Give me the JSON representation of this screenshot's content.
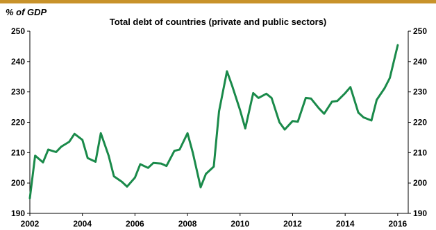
{
  "chart_data": {
    "type": "line",
    "title": "Total debt of countries (private and public sectors)",
    "unit_label": "% of GDP",
    "xlabel": "",
    "ylabel": "% of GDP",
    "xlim": [
      2002,
      2016.4
    ],
    "ylim": [
      190,
      250
    ],
    "x_ticks": [
      2002,
      2004,
      2006,
      2008,
      2010,
      2012,
      2014,
      2016
    ],
    "y_ticks": [
      190,
      200,
      210,
      220,
      230,
      240,
      250
    ],
    "grid": false,
    "legend": "none",
    "line_color": "#1a8a4a",
    "series": [
      {
        "x": [
          2002.0,
          2002.2,
          2002.5,
          2002.7,
          2003.0,
          2003.2,
          2003.5,
          2003.7,
          2004.0,
          2004.2,
          2004.5,
          2004.7,
          2005.0,
          2005.2,
          2005.5,
          2005.7,
          2006.0,
          2006.2,
          2006.5,
          2006.7,
          2007.0,
          2007.2,
          2007.5,
          2007.7,
          2008.0,
          2008.2,
          2008.5,
          2008.7,
          2009.0,
          2009.2,
          2009.5,
          2009.7,
          2010.0,
          2010.2,
          2010.5,
          2010.7,
          2011.0,
          2011.2,
          2011.5,
          2011.7,
          2012.0,
          2012.2,
          2012.5,
          2012.7,
          2013.0,
          2013.2,
          2013.5,
          2013.7,
          2014.0,
          2014.2,
          2014.5,
          2014.7,
          2015.0,
          2015.2,
          2015.5,
          2015.7,
          2016.0
        ],
        "values": [
          195.0,
          209.0,
          206.8,
          211.0,
          210.2,
          212.0,
          213.6,
          216.2,
          214.2,
          208.2,
          207.0,
          216.4,
          209.0,
          202.2,
          200.4,
          198.8,
          201.8,
          206.2,
          205.0,
          206.6,
          206.4,
          205.6,
          210.6,
          211.0,
          216.4,
          210.0,
          198.6,
          203.0,
          205.4,
          223.6,
          236.8,
          232.0,
          224.0,
          218.0,
          229.6,
          228.0,
          229.4,
          228.0,
          220.0,
          217.6,
          220.4,
          220.2,
          228.0,
          227.8,
          224.6,
          222.8,
          226.8,
          227.0,
          229.6,
          231.6,
          223.2,
          221.6,
          220.6,
          227.4,
          231.2,
          234.6,
          245.4
        ]
      }
    ]
  }
}
